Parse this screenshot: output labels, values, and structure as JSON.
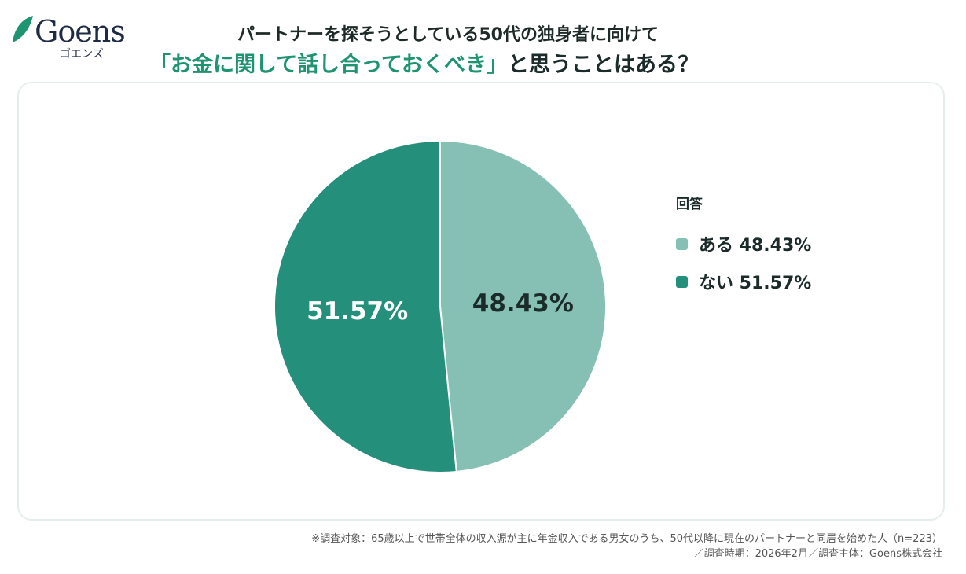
{
  "logo": {
    "name": "Goens",
    "kana": "ゴエンズ"
  },
  "title": {
    "line1": "パートナーを探そうとしている50代の独身者に向けて",
    "highlight": "「お金に関して話し合っておくべき」",
    "rest": "と思うことはある？"
  },
  "chart_data": {
    "type": "pie",
    "legend_title": "回答",
    "legend_position": "right",
    "slices": [
      {
        "name": "ある",
        "value": 48.43,
        "label": "48.43%",
        "legend": "ある 48.43%",
        "color": "#86bfb3"
      },
      {
        "name": "ない",
        "value": 51.57,
        "label": "51.57%",
        "legend": "ない 51.57%",
        "color": "#248f7a"
      }
    ]
  },
  "footnote": {
    "line1": "※調査対象：65歳以上で世帯全体の収入源が主に年金収入である男女のうち、50代以降に現在のパートナーと同居を始めた人（n=223）",
    "line2": "／調査時期：2026年2月／調査主体：Goens株式会社"
  }
}
